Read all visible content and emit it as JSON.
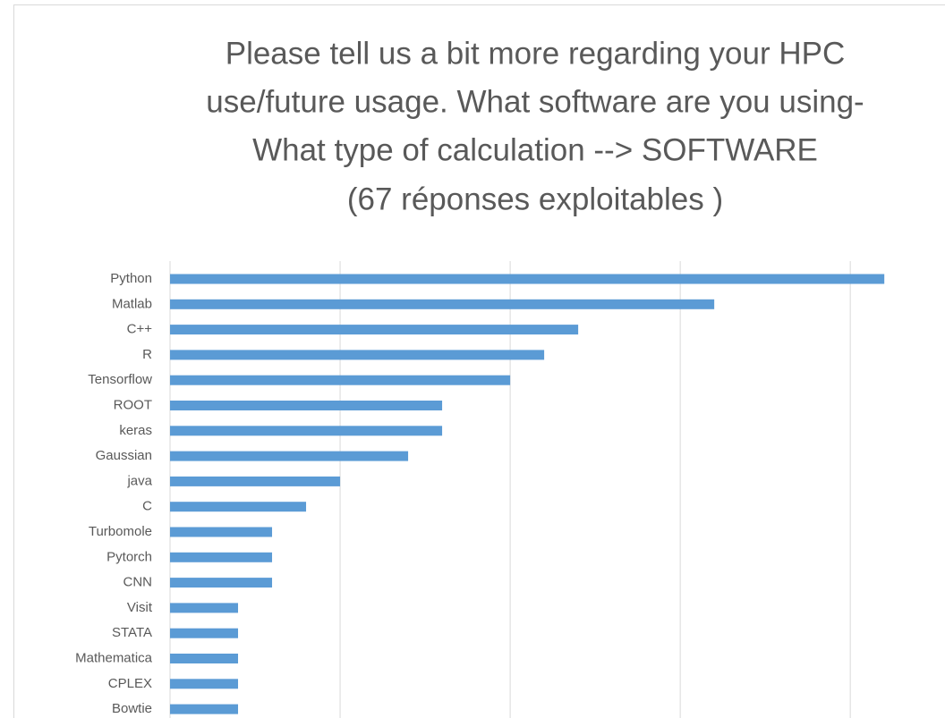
{
  "chart_data": {
    "type": "bar",
    "orientation": "horizontal",
    "title": [
      "Please tell us a bit more regarding your HPC",
      "use/future usage. What software are you using-",
      "What type of calculation --> SOFTWARE",
      "(67 réponses exploitables )"
    ],
    "categories": [
      "Python",
      "Matlab",
      "C++",
      "R",
      "Tensorflow",
      "ROOT",
      "keras",
      "Gaussian",
      "java",
      "C",
      "Turbomole",
      "Pytorch",
      "CNN",
      "Visit",
      "STATA",
      "Mathematica",
      "CPLEX",
      "Bowtie"
    ],
    "values": [
      21,
      16,
      12,
      11,
      10,
      8,
      8,
      7,
      5,
      4,
      3,
      3,
      3,
      2,
      2,
      2,
      2,
      2
    ],
    "color": "#5b9bd5",
    "xlim": [
      0,
      22.6
    ],
    "xticks": [
      0,
      5,
      10,
      15,
      20
    ],
    "grid": true
  }
}
